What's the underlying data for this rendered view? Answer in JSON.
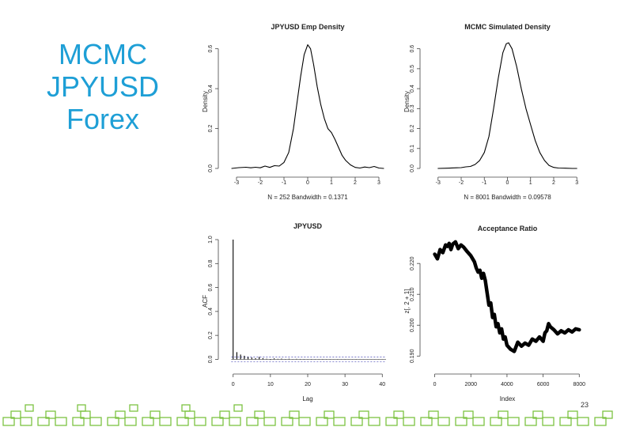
{
  "slide": {
    "title_lines": [
      "MCMC",
      "JPYUSD",
      "Forex"
    ],
    "title_color": "#1E9FD6",
    "page_number": "23",
    "footer_color": "#7DC242"
  },
  "chart_data": [
    {
      "type": "line",
      "title": "JPYUSD Emp Density",
      "xlabel": "N = 252   Bandwidth = 0.1371",
      "ylabel": "Density",
      "xlim": [
        -3.3,
        3.3
      ],
      "ylim": [
        0,
        0.67
      ],
      "xticks": [
        -3,
        -2,
        -1,
        0,
        1,
        2,
        3
      ],
      "xtick_labels": [
        "-3",
        "-2",
        "-1",
        "0",
        "1",
        "2",
        "3"
      ],
      "yticks": [
        0,
        0.2,
        0.4,
        0.6
      ],
      "ytick_labels": [
        "0.0",
        "0.2",
        "0.4",
        "0.6"
      ],
      "series": [
        {
          "x": [
            -3.2,
            -2.9,
            -2.6,
            -2.4,
            -2.2,
            -2.0,
            -1.8,
            -1.6,
            -1.4,
            -1.2,
            -1.0,
            -0.8,
            -0.6,
            -0.45,
            -0.3,
            -0.15,
            0.0,
            0.12,
            0.25,
            0.4,
            0.55,
            0.7,
            0.85,
            1.0,
            1.15,
            1.3,
            1.45,
            1.6,
            1.8,
            2.0,
            2.2,
            2.4,
            2.6,
            2.8,
            3.0,
            3.2
          ],
          "y": [
            0.0,
            0.004,
            0.006,
            0.003,
            0.006,
            0.003,
            0.012,
            0.005,
            0.014,
            0.012,
            0.03,
            0.08,
            0.2,
            0.33,
            0.46,
            0.57,
            0.62,
            0.6,
            0.52,
            0.41,
            0.32,
            0.25,
            0.2,
            0.18,
            0.145,
            0.105,
            0.065,
            0.04,
            0.018,
            0.005,
            0.002,
            0.007,
            0.004,
            0.01,
            0.002,
            0.0
          ]
        }
      ]
    },
    {
      "type": "line",
      "title": "MCMC Simulated Density",
      "xlabel": "N = 8001   Bandwidth = 0.09578",
      "ylabel": "Density",
      "xlim": [
        -3.3,
        3.3
      ],
      "ylim": [
        0,
        0.67
      ],
      "xticks": [
        -3,
        -2,
        -1,
        0,
        1,
        2,
        3
      ],
      "xtick_labels": [
        "-3",
        "-2",
        "-1",
        "0",
        "1",
        "2",
        "3"
      ],
      "yticks": [
        0,
        0.1,
        0.2,
        0.3,
        0.4,
        0.5,
        0.6
      ],
      "ytick_labels": [
        "0.0",
        "0.1",
        "0.2",
        "0.3",
        "0.4",
        "0.5",
        "0.6"
      ],
      "series": [
        {
          "x": [
            -3.0,
            -2.6,
            -2.2,
            -2.0,
            -1.8,
            -1.6,
            -1.4,
            -1.2,
            -1.0,
            -0.8,
            -0.6,
            -0.4,
            -0.2,
            -0.05,
            0.05,
            0.2,
            0.4,
            0.6,
            0.8,
            1.0,
            1.2,
            1.4,
            1.6,
            1.8,
            2.0,
            2.2,
            2.5,
            2.8,
            3.0
          ],
          "y": [
            0.0,
            0.001,
            0.003,
            0.004,
            0.008,
            0.01,
            0.02,
            0.04,
            0.08,
            0.16,
            0.3,
            0.45,
            0.58,
            0.625,
            0.63,
            0.6,
            0.51,
            0.4,
            0.3,
            0.22,
            0.14,
            0.08,
            0.04,
            0.015,
            0.005,
            0.002,
            0.001,
            0.0,
            0.0
          ]
        }
      ]
    },
    {
      "type": "bar",
      "title": "JPYUSD",
      "xlabel": "Lag",
      "ylabel": "ACF",
      "xlim": [
        -1,
        41
      ],
      "ylim": [
        -0.05,
        1.02
      ],
      "xticks": [
        0,
        10,
        20,
        30,
        40
      ],
      "xtick_labels": [
        "0",
        "10",
        "20",
        "30",
        "40"
      ],
      "yticks": [
        0,
        0.2,
        0.4,
        0.6,
        0.8,
        1.0
      ],
      "ytick_labels": [
        "0.0",
        "0.2",
        "0.4",
        "0.6",
        "0.8",
        "1.0"
      ],
      "ci_band": 0.02,
      "lags": [
        0,
        1,
        2,
        3,
        4,
        5,
        6,
        7,
        8,
        9,
        10,
        11,
        12,
        13,
        14,
        15,
        16,
        17,
        18,
        19,
        20,
        21,
        22,
        23,
        24,
        25,
        26,
        27,
        28,
        29,
        30,
        31,
        32,
        33,
        34,
        35,
        36,
        37,
        38,
        39,
        40
      ],
      "values": [
        1.0,
        0.06,
        0.04,
        0.03,
        0.02,
        0.015,
        0.01,
        0.02,
        0.01,
        0.005,
        -0.005,
        0.008,
        0.004,
        0.006,
        0.003,
        0.005,
        0.002,
        0.004,
        0.003,
        0.003,
        0.002,
        0.003,
        0.002,
        0.002,
        0.003,
        0.002,
        0.002,
        0.001,
        0.002,
        0.001,
        0.002,
        0.001,
        0.001,
        0.002,
        0.001,
        0.001,
        0.001,
        0.001,
        0.001,
        0.001,
        0.001
      ]
    },
    {
      "type": "line",
      "title": "Acceptance Ratio",
      "xlabel": "Index",
      "ylabel": "z[, 2 + 1]",
      "xlim": [
        -200,
        8250
      ],
      "ylim": [
        0.187,
        0.2285
      ],
      "xticks": [
        0,
        2000,
        4000,
        6000,
        8000
      ],
      "xtick_labels": [
        "0",
        "2000",
        "4000",
        "6000",
        "8000"
      ],
      "yticks": [
        0.19,
        0.2,
        0.21,
        0.22
      ],
      "ytick_labels": [
        "0.190",
        "0.200",
        "0.210",
        "0.220"
      ],
      "series": [
        {
          "x": [
            0,
            150,
            300,
            450,
            600,
            700,
            800,
            900,
            1000,
            1150,
            1300,
            1450,
            1600,
            1800,
            2000,
            2100,
            2200,
            2300,
            2400,
            2500,
            2600,
            2700,
            2800,
            2900,
            3000,
            3100,
            3200,
            3300,
            3400,
            3500,
            3600,
            3700,
            3800,
            3900,
            4000,
            4200,
            4400,
            4600,
            4800,
            5000,
            5200,
            5400,
            5600,
            5800,
            6000,
            6100,
            6200,
            6300,
            6400,
            6600,
            6800,
            7000,
            7200,
            7400,
            7600,
            7800,
            8000
          ],
          "y": [
            0.223,
            0.2215,
            0.2245,
            0.2235,
            0.226,
            0.2255,
            0.2265,
            0.2245,
            0.2263,
            0.227,
            0.2248,
            0.226,
            0.2253,
            0.2238,
            0.2225,
            0.2215,
            0.2205,
            0.2185,
            0.2172,
            0.2178,
            0.2152,
            0.2168,
            0.2145,
            0.2105,
            0.2065,
            0.2072,
            0.2025,
            0.2035,
            0.1995,
            0.2005,
            0.1975,
            0.1988,
            0.1955,
            0.1962,
            0.1935,
            0.1922,
            0.1915,
            0.1945,
            0.1932,
            0.1942,
            0.1935,
            0.1955,
            0.1948,
            0.1962,
            0.1948,
            0.1975,
            0.1982,
            0.2005,
            0.1995,
            0.1985,
            0.1972,
            0.1982,
            0.1975,
            0.1985,
            0.1978,
            0.1988,
            0.1985
          ]
        }
      ]
    }
  ]
}
